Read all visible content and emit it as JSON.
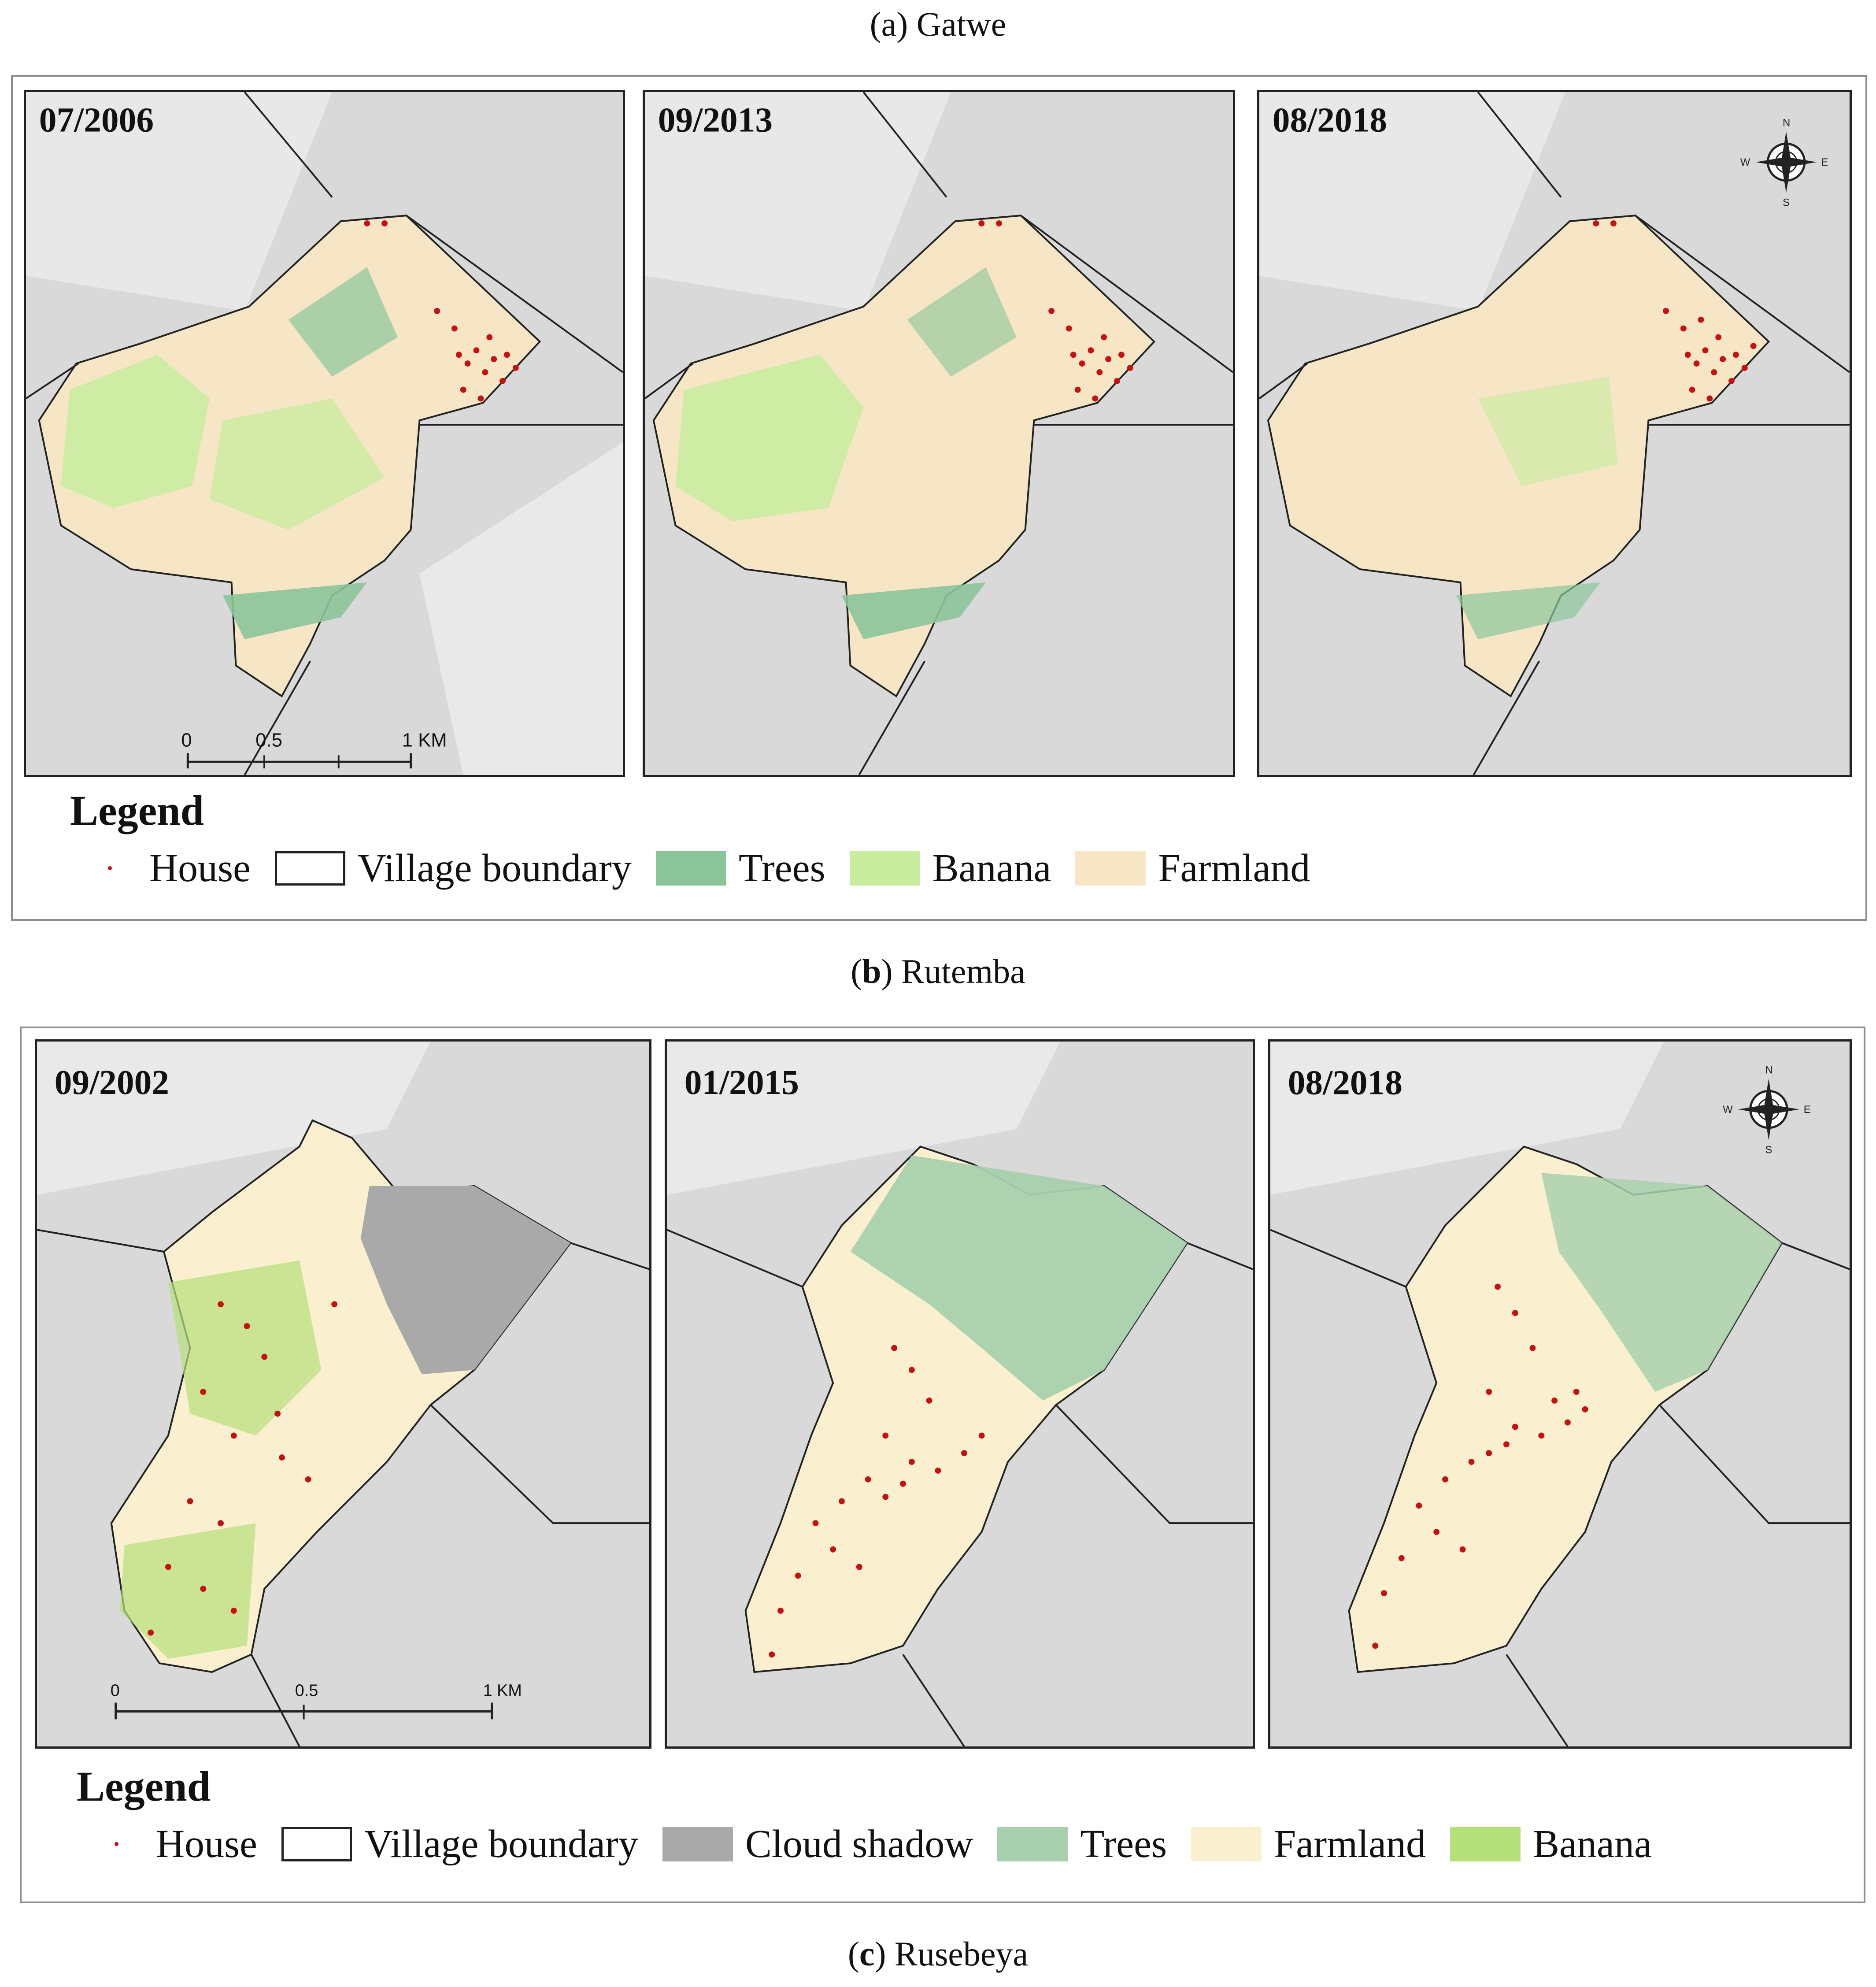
{
  "captions": {
    "a": "Gatwe",
    "b": "Rutemba",
    "c": "Rusebeya"
  },
  "top_figure": {
    "dates": [
      "07/2006",
      "09/2013",
      "08/2018"
    ],
    "scalebar": {
      "ticks": [
        "0",
        "0.5",
        "1 KM"
      ]
    },
    "compass": [
      "N",
      "E",
      "S",
      "W"
    ],
    "legend": {
      "title": "Legend",
      "items": [
        {
          "label": "House",
          "kind": "dot",
          "color": "#c41212"
        },
        {
          "label": "Village boundary",
          "kind": "outline",
          "color": "#ffffff"
        },
        {
          "label": "Trees",
          "kind": "fill",
          "color": "#8cc49a"
        },
        {
          "label": "Banana",
          "kind": "fill",
          "color": "#c8ec9e"
        },
        {
          "label": "Farmland",
          "kind": "fill",
          "color": "#f6e6c6"
        }
      ]
    }
  },
  "bottom_figure": {
    "dates": [
      "09/2002",
      "01/2015",
      "08/2018"
    ],
    "scalebar": {
      "ticks": [
        "0",
        "0.5",
        "1 KM"
      ]
    },
    "compass": [
      "N",
      "E",
      "S",
      "W"
    ],
    "legend": {
      "title": "Legend",
      "items": [
        {
          "label": "House",
          "kind": "dot",
          "color": "#c41212"
        },
        {
          "label": "Village boundary",
          "kind": "outline",
          "color": "#ffffff"
        },
        {
          "label": "Cloud shadow",
          "kind": "fill",
          "color": "#a9a9a9"
        },
        {
          "label": "Trees",
          "kind": "fill",
          "color": "#a8d0ae"
        },
        {
          "label": "Farmland",
          "kind": "fill",
          "color": "#faefcf"
        },
        {
          "label": "Banana",
          "kind": "fill",
          "color": "#b5e07a"
        }
      ]
    }
  },
  "colors": {
    "terrain": "#d8d8d8",
    "boundary_line": "#222222",
    "house": "#c41212",
    "top_farmland": "#f6e6c6",
    "top_trees": "#8cc49a",
    "top_banana": "#c8ec9e",
    "bottom_farmland": "#faefcf",
    "bottom_trees": "#a8d0ae",
    "bottom_banana": "#b5e07a",
    "cloud_shadow": "#a9a9a9"
  }
}
